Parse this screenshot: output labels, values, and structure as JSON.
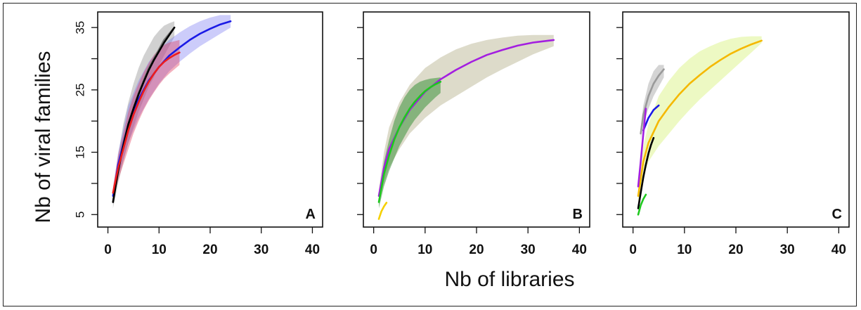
{
  "chart_data": {
    "type": "line",
    "xlabel": "Nb of libraries",
    "ylabel": "Nb of viral families",
    "x_ticks": [
      0,
      10,
      20,
      30,
      40
    ],
    "y_ticks": [
      5,
      15,
      25,
      35
    ],
    "xlim": [
      -2,
      42
    ],
    "ylim": [
      3,
      37.5
    ],
    "panels": [
      {
        "label": "A",
        "show_y_tick_labels": true,
        "series": [
          {
            "color": "#7a7a7a",
            "band_color": "#8c8c8c",
            "band_opacity": 0.4,
            "x": [
              1,
              2,
              3,
              4,
              5,
              6,
              7,
              8,
              9,
              10,
              11,
              12,
              13
            ],
            "y": [
              7,
              12.5,
              16.5,
              19.5,
              22,
              24.5,
              26.5,
              28.5,
              30,
              31.5,
              33,
              34,
              35
            ],
            "lower": [
              6,
              10,
              13.5,
              16.5,
              19,
              21.5,
              23.5,
              25.5,
              27,
              29,
              30.5,
              32,
              33.5
            ],
            "upper": [
              8,
              14.5,
              19.5,
              23,
              26,
              28.5,
              30.5,
              32,
              33.5,
              34.5,
              35.3,
              35.7,
              36
            ]
          },
          {
            "color": "#1a1ae6",
            "band_color": "#6e6ef0",
            "band_opacity": 0.35,
            "x": [
              1,
              2,
              4,
              6,
              8,
              10,
              12,
              14,
              16,
              18,
              20,
              22,
              24
            ],
            "y": [
              8,
              13,
              19.5,
              23.5,
              26.5,
              28.7,
              30.5,
              31.8,
              33,
              34,
              34.8,
              35.5,
              36
            ],
            "lower": [
              7,
              11,
              16.5,
              20.5,
              23.5,
              26,
              28,
              29.5,
              30.8,
              32,
              33,
              34,
              35
            ],
            "upper": [
              9,
              15,
              22.5,
              26.5,
              29.5,
              31.5,
              33,
              34.2,
              35.2,
              36,
              36.6,
              37,
              37
            ]
          },
          {
            "color": "#000000",
            "band_color": "#000000",
            "band_opacity": 0,
            "x": [
              1,
              2,
              3,
              4,
              5,
              6,
              7,
              8,
              9,
              10,
              11,
              12,
              13
            ],
            "y": [
              7,
              12,
              16,
              19.5,
              22,
              24.3,
              26.3,
              28.2,
              29.8,
              31.2,
              32.6,
              33.8,
              35
            ],
            "lower": [],
            "upper": []
          },
          {
            "color": "#ee1c1c",
            "band_color": "#e03a5a",
            "band_opacity": 0.4,
            "x": [
              1,
              2,
              3,
              4,
              5,
              6,
              7,
              8,
              9,
              10,
              11,
              12,
              13,
              14
            ],
            "y": [
              8.5,
              12.5,
              15.5,
              18.5,
              21,
              23,
              24.8,
              26.3,
              27.6,
              28.7,
              29.5,
              30.1,
              30.6,
              31
            ],
            "lower": [
              7.5,
              10.5,
              13,
              15.5,
              18,
              20,
              21.8,
              23.3,
              24.6,
              25.8,
              26.8,
              27.6,
              28.3,
              29
            ],
            "upper": [
              9.5,
              14.5,
              18,
              21.5,
              24,
              26,
              27.8,
              29.3,
              30.6,
              31.6,
              32.2,
              32.6,
              32.8,
              33
            ]
          }
        ]
      },
      {
        "label": "B",
        "show_y_tick_labels": false,
        "series": [
          {
            "color": "#a31ee0",
            "band_color": "#aaa67a",
            "band_opacity": 0.4,
            "x": [
              1,
              2,
              3,
              5,
              7,
              10,
              13,
              16,
              19,
              22,
              25,
              28,
              31,
              35
            ],
            "y": [
              8,
              12.5,
              15.5,
              19,
              21.8,
              24.7,
              26.7,
              28.2,
              29.5,
              30.6,
              31.4,
              32.1,
              32.6,
              33
            ],
            "lower": [
              7,
              10,
              12.5,
              15.5,
              18,
              20.5,
              22.5,
              24,
              25.5,
              27,
              28.3,
              29.5,
              30.7,
              32
            ],
            "upper": [
              9,
              15,
              19,
              23,
              25.8,
              28.5,
              30.2,
              31.5,
              32.4,
              33,
              33.4,
              33.7,
              33.8,
              33.8
            ]
          },
          {
            "color": "#1ec81e",
            "band_color": "#2e8b2e",
            "band_opacity": 0.5,
            "x": [
              1,
              2,
              3,
              4,
              5,
              6,
              7,
              8,
              9,
              10,
              11,
              12,
              13
            ],
            "y": [
              7,
              11.5,
              14.5,
              17,
              19,
              20.6,
              22,
              23.1,
              24,
              24.8,
              25.4,
              25.9,
              26.3
            ],
            "lower": [
              6,
              9.5,
              12,
              14,
              16,
              17.5,
              19,
              20.2,
              21.2,
              22.2,
              23,
              23.8,
              24.5
            ],
            "upper": [
              8,
              13.5,
              17,
              20,
              22.2,
              23.8,
              25,
              25.8,
              26.3,
              26.6,
              26.8,
              26.9,
              27
            ]
          },
          {
            "color": "#f5d000",
            "band_color": "#f5d000",
            "band_opacity": 0,
            "x": [
              1,
              1.5,
              2,
              2.5
            ],
            "y": [
              4.3,
              5.5,
              6.3,
              6.9
            ],
            "lower": [],
            "upper": []
          }
        ]
      },
      {
        "label": "C",
        "show_y_tick_labels": false,
        "series": [
          {
            "color": "#f5b800",
            "band_color": "#d6f27a",
            "band_opacity": 0.45,
            "x": [
              1,
              2,
              3,
              5,
              7,
              9,
              11,
              13,
              15,
              17,
              19,
              21,
              23,
              25
            ],
            "y": [
              8,
              13.5,
              16.5,
              20,
              22.3,
              24.3,
              26,
              27.4,
              28.7,
              29.8,
              30.8,
              31.6,
              32.3,
              32.9
            ],
            "lower": [
              7,
              11,
              13.5,
              16,
              18,
              20,
              21.8,
              23.5,
              25,
              26.5,
              28,
              29.5,
              31,
              32.5
            ],
            "upper": [
              9,
              16,
              19.5,
              24,
              26.5,
              28.5,
              30,
              31.2,
              32,
              32.7,
              33.2,
              33.5,
              33.6,
              33.6
            ]
          },
          {
            "color": "#9a9a9a",
            "band_color": "#b8b8b8",
            "band_opacity": 0.6,
            "x": [
              1.5,
              2,
              3,
              4,
              5,
              6
            ],
            "y": [
              18,
              21,
              24,
              26,
              27.3,
              28.3
            ],
            "lower": [
              17,
              19.5,
              22,
              24,
              25.5,
              27
            ],
            "upper": [
              19,
              22.5,
              26,
              28,
              29,
              29
            ]
          },
          {
            "color": "#1a1ae6",
            "band_color": "#1a1ae6",
            "band_opacity": 0,
            "x": [
              2,
              3,
              4,
              5
            ],
            "y": [
              18.5,
              20.5,
              21.8,
              22.5
            ],
            "lower": [],
            "upper": []
          },
          {
            "color": "#a31ee0",
            "band_color": "#a31ee0",
            "band_opacity": 0,
            "x": [
              1,
              1.5,
              2,
              2.5
            ],
            "y": [
              9.5,
              13.5,
              18,
              22
            ],
            "lower": [],
            "upper": []
          },
          {
            "color": "#000000",
            "band_color": "#000000",
            "band_opacity": 0,
            "x": [
              1,
              1.5,
              2,
              2.5,
              3,
              3.5,
              4
            ],
            "y": [
              6,
              8.5,
              11,
              13,
              14.8,
              16.2,
              17.3
            ],
            "lower": [],
            "upper": []
          },
          {
            "color": "#1ec81e",
            "band_color": "#1ec81e",
            "band_opacity": 0,
            "x": [
              1,
              1.5,
              2,
              2.5
            ],
            "y": [
              5,
              6.5,
              7.5,
              8.2
            ],
            "lower": [],
            "upper": []
          }
        ]
      }
    ]
  }
}
